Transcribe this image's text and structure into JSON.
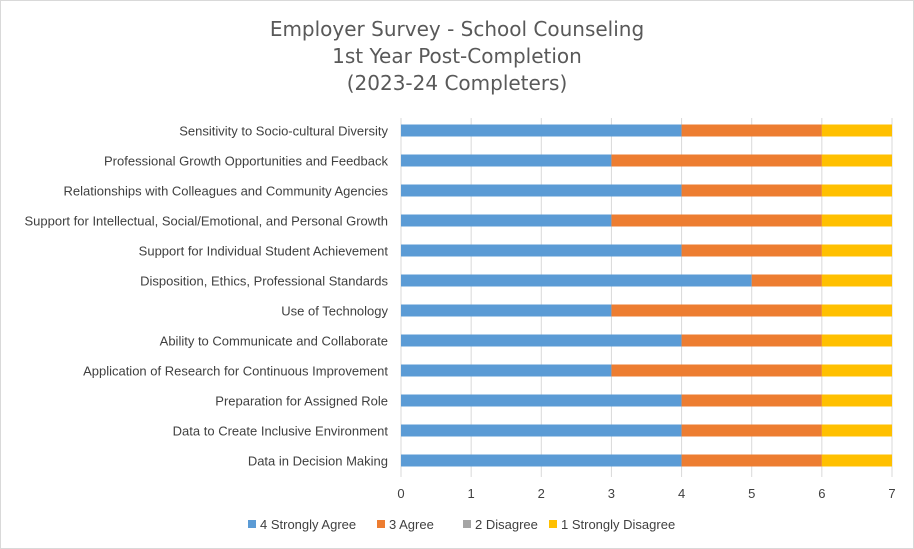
{
  "chart_data": {
    "type": "bar",
    "orientation": "horizontal",
    "stacked": true,
    "title_lines": [
      "Employer Survey - School Counseling",
      "1st Year Post-Completion",
      "(2023-24 Completers)"
    ],
    "categories": [
      "Sensitivity to Socio-cultural Diversity",
      "Professional Growth Opportunities and Feedback",
      "Relationships with Colleagues and Community Agencies",
      "Support for Intellectual, Social/Emotional, and Personal Growth",
      "Support for Individual Student Achievement",
      "Disposition, Ethics, Professional Standards",
      "Use of Technology",
      "Ability to Communicate and Collaborate",
      "Application of Research for Continuous Improvement",
      "Preparation for Assigned Role",
      "Data to Create Inclusive Environment",
      "Data in Decision Making"
    ],
    "series": [
      {
        "name": "4 Strongly Agree",
        "color": "#5b9bd5",
        "values": [
          4,
          3,
          4,
          3,
          4,
          5,
          3,
          4,
          3,
          4,
          4,
          4
        ]
      },
      {
        "name": "3 Agree",
        "color": "#ed7d31",
        "values": [
          2,
          3,
          2,
          3,
          2,
          1,
          3,
          2,
          3,
          2,
          2,
          2
        ]
      },
      {
        "name": "2 Disagree",
        "color": "#a5a5a5",
        "values": [
          0,
          0,
          0,
          0,
          0,
          0,
          0,
          0,
          0,
          0,
          0,
          0
        ]
      },
      {
        "name": "1 Strongly Disagree",
        "color": "#ffc000",
        "values": [
          1,
          1,
          1,
          1,
          1,
          1,
          1,
          1,
          1,
          1,
          1,
          1
        ]
      }
    ],
    "xlim": [
      0,
      7
    ],
    "xticks": [
      "0",
      "1",
      "2",
      "3",
      "4",
      "5",
      "6",
      "7"
    ],
    "xgrid": true,
    "legend_position": "bottom"
  }
}
